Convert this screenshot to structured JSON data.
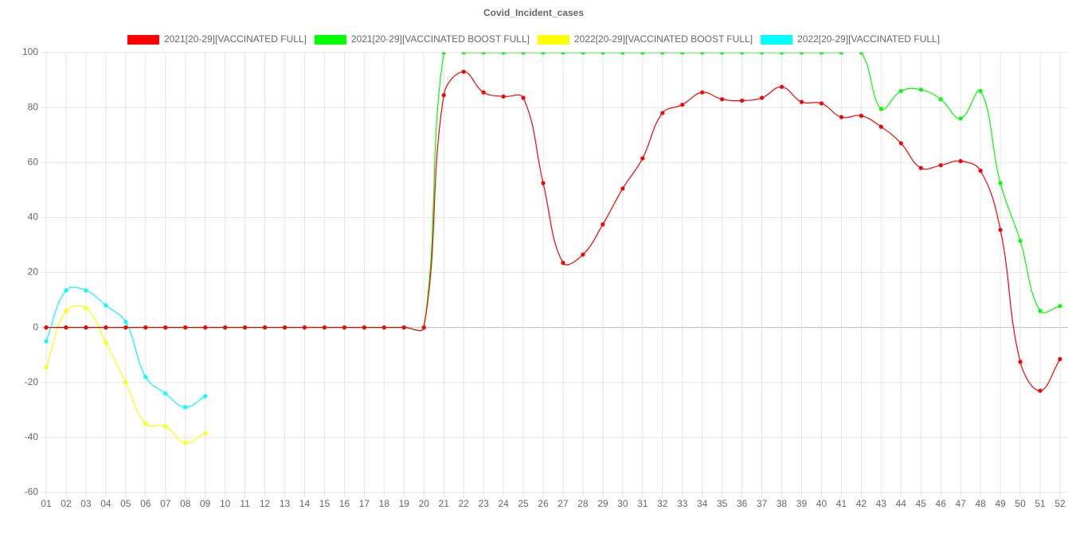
{
  "chart_data": {
    "type": "line",
    "title": "Covid_Incident_cases",
    "categories": [
      "01",
      "02",
      "03",
      "04",
      "05",
      "06",
      "07",
      "08",
      "09",
      "10",
      "11",
      "12",
      "13",
      "14",
      "15",
      "16",
      "17",
      "18",
      "19",
      "20",
      "21",
      "22",
      "23",
      "24",
      "25",
      "26",
      "27",
      "28",
      "29",
      "30",
      "31",
      "32",
      "33",
      "34",
      "35",
      "36",
      "37",
      "38",
      "39",
      "40",
      "41",
      "42",
      "43",
      "44",
      "45",
      "46",
      "47",
      "48",
      "49",
      "50",
      "51",
      "52"
    ],
    "series": [
      {
        "name": "2021[20-29][VACCINATED FULL]",
        "color": "#ff0000",
        "values": [
          0,
          0,
          0,
          0,
          0,
          0,
          0,
          0,
          0,
          0,
          0,
          0,
          0,
          0,
          0,
          0,
          0,
          0,
          0,
          0,
          84.5,
          93,
          85.5,
          84,
          83.5,
          52.5,
          23.5,
          26.5,
          37.5,
          50.5,
          61.5,
          78,
          81,
          85.5,
          83,
          82.5,
          83.5,
          87.5,
          82,
          81.5,
          76.5,
          77,
          73,
          67,
          58,
          59,
          60.5,
          57,
          35.5,
          -12.5,
          -23,
          -11.5
        ]
      },
      {
        "name": "2021[20-29][VACCINATED BOOST FULL]",
        "color": "#00ff00",
        "values": [
          0,
          0,
          0,
          0,
          0,
          0,
          0,
          0,
          0,
          0,
          0,
          0,
          0,
          0,
          0,
          0,
          0,
          0,
          0,
          0,
          100,
          100,
          100,
          100,
          100,
          100,
          100,
          100,
          100,
          100,
          100,
          100,
          100,
          100,
          100,
          100,
          100,
          100,
          100,
          100,
          100,
          100,
          79.5,
          86,
          86.5,
          83,
          76,
          86,
          52.5,
          31.5,
          6,
          7.8
        ]
      },
      {
        "name": "2022[20-29][VACCINATED BOOST FULL]",
        "color": "#ffff00",
        "values": [
          -14.5,
          6,
          7,
          -5.5,
          -20,
          -35,
          -36,
          -42,
          -38.5,
          null,
          null,
          null,
          null,
          null,
          null,
          null,
          null,
          null,
          null,
          null,
          null,
          null,
          null,
          null,
          null,
          null,
          null,
          null,
          null,
          null,
          null,
          null,
          null,
          null,
          null,
          null,
          null,
          null,
          null,
          null,
          null,
          null,
          null,
          null,
          null,
          null,
          null,
          null,
          null,
          null,
          null,
          null
        ]
      },
      {
        "name": "2022[20-29][VACCINATED FULL]",
        "color": "#00ffff",
        "values": [
          -5,
          13.5,
          13.5,
          8,
          2,
          -18,
          -24,
          -29,
          -25,
          null,
          null,
          null,
          null,
          null,
          null,
          null,
          null,
          null,
          null,
          null,
          null,
          null,
          null,
          null,
          null,
          null,
          null,
          null,
          null,
          null,
          null,
          null,
          null,
          null,
          null,
          null,
          null,
          null,
          null,
          null,
          null,
          null,
          null,
          null,
          null,
          null,
          null,
          null,
          null,
          null,
          null,
          null
        ]
      }
    ],
    "ylim": [
      -60,
      100
    ],
    "yticks": [
      -60,
      -40,
      -20,
      0,
      20,
      40,
      60,
      80,
      100
    ],
    "grid": true
  }
}
